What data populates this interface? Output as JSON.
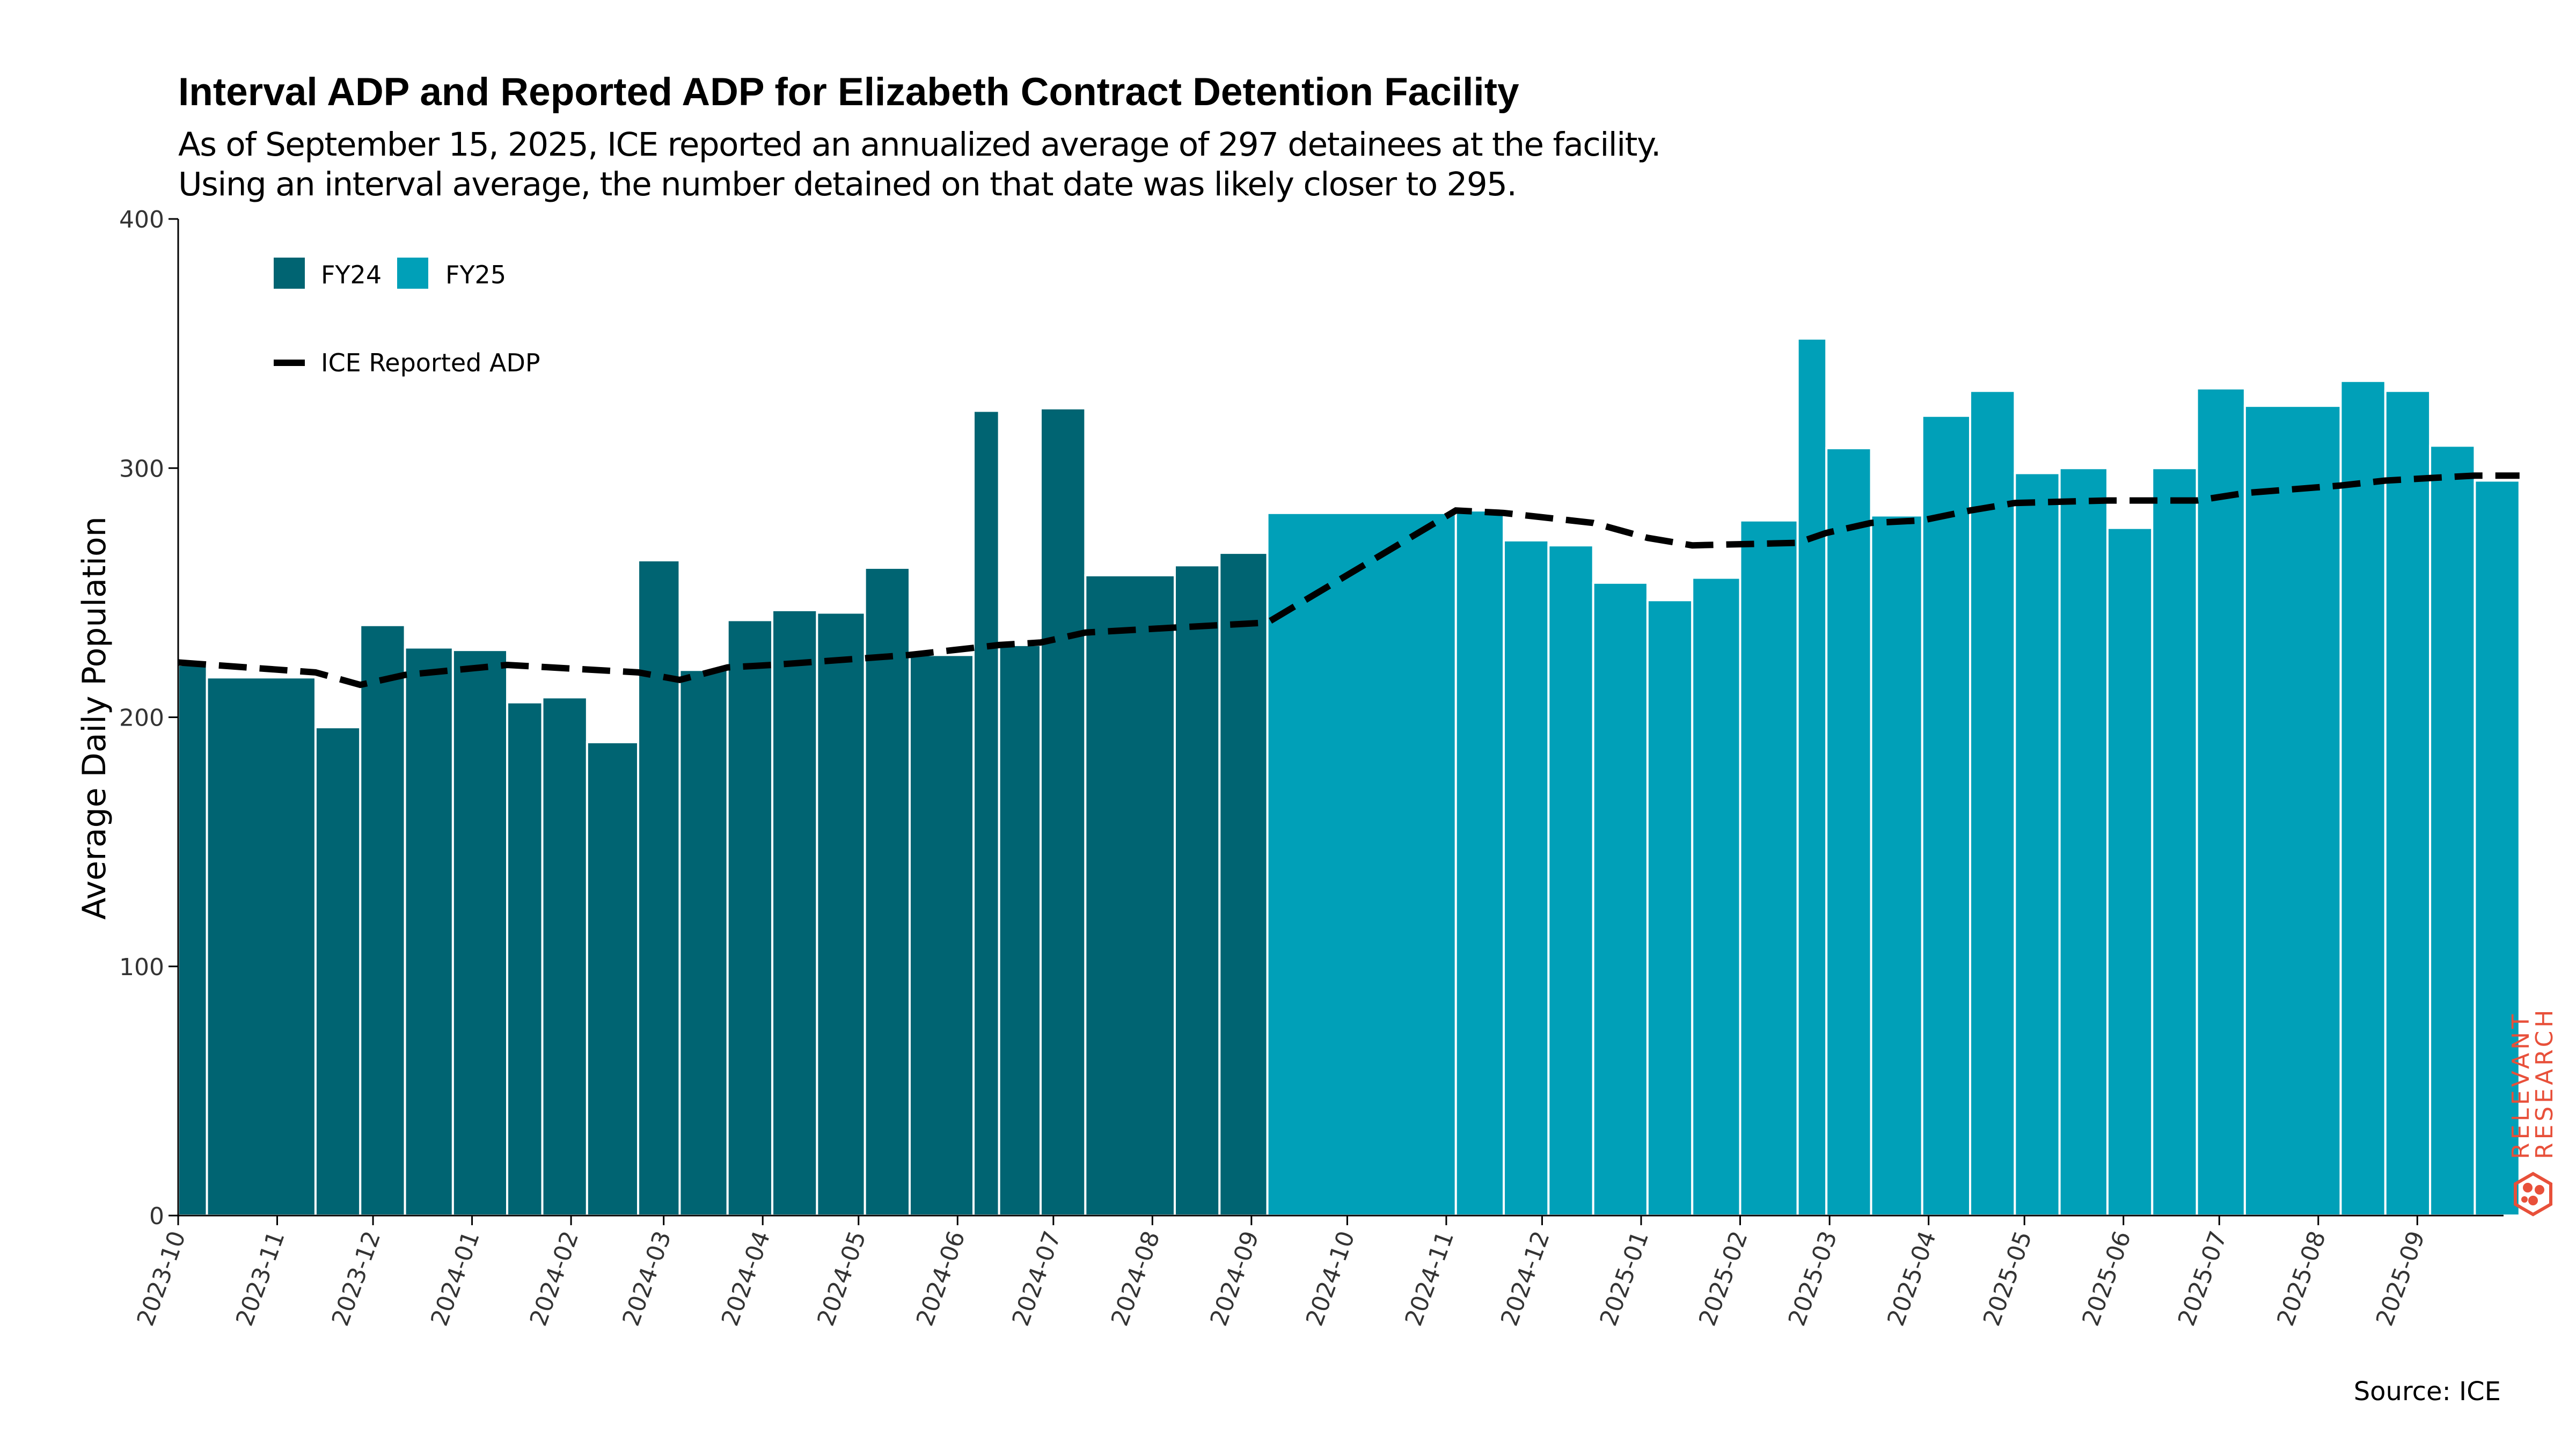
{
  "header": {
    "title": "Interval ADP and Reported ADP for Elizabeth Contract Detention Facility",
    "subtitle_line1": "As of September 15, 2025, ICE reported an annualized average of 297 detainees at the facility.",
    "subtitle_line2": "Using an interval average, the number detained on that date was likely closer to 295."
  },
  "footer": {
    "source": "Source: ICE"
  },
  "branding": {
    "logo_text_line1": "RELEVANT",
    "logo_text_line2": "RESEARCH",
    "logo_icon": "hexagon-molecule-icon",
    "logo_color": "#e8503a"
  },
  "chart_data": {
    "type": "bar",
    "title": "Interval ADP and Reported ADP for Elizabeth Contract Detention Facility",
    "ylabel": "Average Daily Population",
    "xlabel": "",
    "ylim": [
      0,
      400
    ],
    "yticks": [
      0,
      100,
      200,
      300,
      400
    ],
    "xticks": [
      "2023-10",
      "2023-11",
      "2023-12",
      "2024-01",
      "2024-02",
      "2024-03",
      "2024-04",
      "2024-05",
      "2024-06",
      "2024-07",
      "2024-08",
      "2024-09",
      "2024-10",
      "2024-11",
      "2024-12",
      "2025-01",
      "2025-02",
      "2025-03",
      "2025-04",
      "2025-05",
      "2025-06",
      "2025-07",
      "2025-08",
      "2025-09"
    ],
    "x_range": [
      "2023-10-01",
      "2025-09-28"
    ],
    "legend": {
      "placement": "top-left",
      "items": [
        {
          "label": "FY24",
          "color": "#006472"
        },
        {
          "label": "FY25",
          "color": "#00a0b8"
        }
      ],
      "line_label": "ICE Reported ADP"
    },
    "colors": {
      "FY24": "#006472",
      "FY25": "#00a0b8",
      "reported_line": "#000000"
    },
    "series": [
      {
        "name": "FY24",
        "type": "bar",
        "bars": [
          {
            "start": "2023-10-01",
            "end": "2023-10-10",
            "value": 221
          },
          {
            "start": "2023-10-10",
            "end": "2023-11-13",
            "value": 216
          },
          {
            "start": "2023-11-13",
            "end": "2023-11-27",
            "value": 196
          },
          {
            "start": "2023-11-27",
            "end": "2023-12-11",
            "value": 237
          },
          {
            "start": "2023-12-11",
            "end": "2023-12-26",
            "value": 228
          },
          {
            "start": "2023-12-26",
            "end": "2024-01-12",
            "value": 227
          },
          {
            "start": "2024-01-12",
            "end": "2024-01-23",
            "value": 206
          },
          {
            "start": "2024-01-23",
            "end": "2024-02-06",
            "value": 208
          },
          {
            "start": "2024-02-06",
            "end": "2024-02-22",
            "value": 190
          },
          {
            "start": "2024-02-22",
            "end": "2024-03-06",
            "value": 263
          },
          {
            "start": "2024-03-06",
            "end": "2024-03-21",
            "value": 219
          },
          {
            "start": "2024-03-21",
            "end": "2024-04-04",
            "value": 239
          },
          {
            "start": "2024-04-04",
            "end": "2024-04-18",
            "value": 243
          },
          {
            "start": "2024-04-18",
            "end": "2024-05-03",
            "value": 242
          },
          {
            "start": "2024-05-03",
            "end": "2024-05-17",
            "value": 260
          },
          {
            "start": "2024-05-17",
            "end": "2024-06-06",
            "value": 225
          },
          {
            "start": "2024-06-06",
            "end": "2024-06-14",
            "value": 323
          },
          {
            "start": "2024-06-14",
            "end": "2024-06-27",
            "value": 229
          },
          {
            "start": "2024-06-27",
            "end": "2024-07-11",
            "value": 324
          },
          {
            "start": "2024-07-11",
            "end": "2024-08-08",
            "value": 257
          },
          {
            "start": "2024-08-08",
            "end": "2024-08-22",
            "value": 261
          },
          {
            "start": "2024-08-22",
            "end": "2024-09-06",
            "value": 266
          }
        ]
      },
      {
        "name": "FY25",
        "type": "bar",
        "bars": [
          {
            "start": "2024-09-06",
            "end": "2024-11-04",
            "value": 282
          },
          {
            "start": "2024-11-04",
            "end": "2024-11-19",
            "value": 283
          },
          {
            "start": "2024-11-19",
            "end": "2024-12-03",
            "value": 271
          },
          {
            "start": "2024-12-03",
            "end": "2024-12-17",
            "value": 269
          },
          {
            "start": "2024-12-17",
            "end": "2025-01-03",
            "value": 254
          },
          {
            "start": "2025-01-03",
            "end": "2025-01-17",
            "value": 247
          },
          {
            "start": "2025-01-17",
            "end": "2025-02-01",
            "value": 256
          },
          {
            "start": "2025-02-01",
            "end": "2025-02-19",
            "value": 279
          },
          {
            "start": "2025-02-19",
            "end": "2025-02-28",
            "value": 352
          },
          {
            "start": "2025-02-28",
            "end": "2025-03-14",
            "value": 308
          },
          {
            "start": "2025-03-14",
            "end": "2025-03-30",
            "value": 281
          },
          {
            "start": "2025-03-30",
            "end": "2025-04-14",
            "value": 321
          },
          {
            "start": "2025-04-14",
            "end": "2025-04-28",
            "value": 331
          },
          {
            "start": "2025-04-28",
            "end": "2025-05-12",
            "value": 298
          },
          {
            "start": "2025-05-12",
            "end": "2025-05-27",
            "value": 300
          },
          {
            "start": "2025-05-27",
            "end": "2025-06-10",
            "value": 276
          },
          {
            "start": "2025-06-10",
            "end": "2025-06-24",
            "value": 300
          },
          {
            "start": "2025-06-24",
            "end": "2025-07-09",
            "value": 332
          },
          {
            "start": "2025-07-09",
            "end": "2025-08-08",
            "value": 325
          },
          {
            "start": "2025-08-08",
            "end": "2025-08-22",
            "value": 335
          },
          {
            "start": "2025-08-22",
            "end": "2025-09-05",
            "value": 331
          },
          {
            "start": "2025-09-05",
            "end": "2025-09-19",
            "value": 309
          },
          {
            "start": "2025-09-19",
            "end": "2025-10-03",
            "value": 295
          }
        ]
      },
      {
        "name": "ICE Reported ADP",
        "type": "line",
        "style": "dashed",
        "points": [
          {
            "date": "2023-10-01",
            "value": 222
          },
          {
            "date": "2023-11-13",
            "value": 218
          },
          {
            "date": "2023-11-27",
            "value": 213
          },
          {
            "date": "2023-12-11",
            "value": 217
          },
          {
            "date": "2024-01-12",
            "value": 221
          },
          {
            "date": "2024-02-22",
            "value": 218
          },
          {
            "date": "2024-03-06",
            "value": 215
          },
          {
            "date": "2024-03-21",
            "value": 220
          },
          {
            "date": "2024-04-04",
            "value": 221
          },
          {
            "date": "2024-05-17",
            "value": 225
          },
          {
            "date": "2024-06-14",
            "value": 229
          },
          {
            "date": "2024-06-27",
            "value": 230
          },
          {
            "date": "2024-07-11",
            "value": 234
          },
          {
            "date": "2024-08-08",
            "value": 236
          },
          {
            "date": "2024-09-06",
            "value": 238
          },
          {
            "date": "2024-11-04",
            "value": 283
          },
          {
            "date": "2024-11-19",
            "value": 282
          },
          {
            "date": "2024-12-17",
            "value": 278
          },
          {
            "date": "2025-01-03",
            "value": 272
          },
          {
            "date": "2025-01-17",
            "value": 269
          },
          {
            "date": "2025-02-19",
            "value": 270
          },
          {
            "date": "2025-02-28",
            "value": 274
          },
          {
            "date": "2025-03-14",
            "value": 278
          },
          {
            "date": "2025-03-30",
            "value": 279
          },
          {
            "date": "2025-04-14",
            "value": 283
          },
          {
            "date": "2025-04-28",
            "value": 286
          },
          {
            "date": "2025-05-27",
            "value": 287
          },
          {
            "date": "2025-06-24",
            "value": 287
          },
          {
            "date": "2025-07-09",
            "value": 290
          },
          {
            "date": "2025-08-08",
            "value": 293
          },
          {
            "date": "2025-08-22",
            "value": 295
          },
          {
            "date": "2025-09-05",
            "value": 296
          },
          {
            "date": "2025-09-19",
            "value": 297
          },
          {
            "date": "2025-10-03",
            "value": 297
          }
        ]
      }
    ]
  }
}
